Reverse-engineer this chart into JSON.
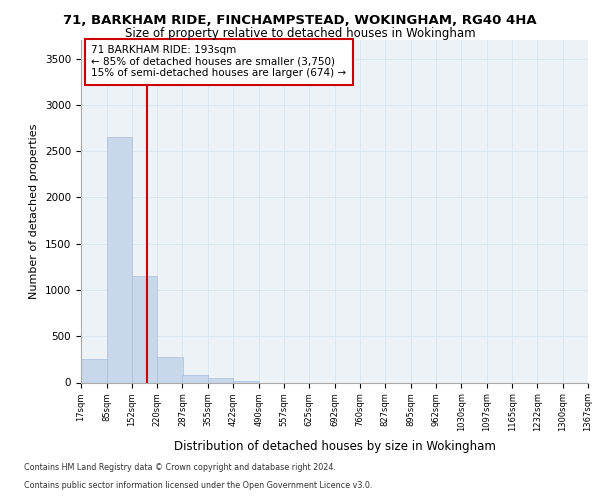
{
  "title1": "71, BARKHAM RIDE, FINCHAMPSTEAD, WOKINGHAM, RG40 4HA",
  "title2": "Size of property relative to detached houses in Wokingham",
  "xlabel": "Distribution of detached houses by size in Wokingham",
  "ylabel": "Number of detached properties",
  "footnote1": "Contains HM Land Registry data © Crown copyright and database right 2024.",
  "footnote2": "Contains public sector information licensed under the Open Government Licence v3.0.",
  "annotation_line1": "71 BARKHAM RIDE: 193sqm",
  "annotation_line2": "← 85% of detached houses are smaller (3,750)",
  "annotation_line3": "15% of semi-detached houses are larger (674) →",
  "property_size": 193,
  "bar_color": "#c8d8ea",
  "bar_edge_color": "#a8c0d8",
  "redline_color": "#cc0000",
  "grid_color": "#dce8f0",
  "background_color": "#edf2f7",
  "x_labels": [
    "17sqm",
    "85sqm",
    "152sqm",
    "220sqm",
    "287sqm",
    "355sqm",
    "422sqm",
    "490sqm",
    "557sqm",
    "625sqm",
    "692sqm",
    "760sqm",
    "827sqm",
    "895sqm",
    "962sqm",
    "1030sqm",
    "1097sqm",
    "1165sqm",
    "1232sqm",
    "1300sqm",
    "1367sqm"
  ],
  "bin_edges": [
    17,
    85,
    152,
    220,
    287,
    355,
    422,
    490,
    557,
    625,
    692,
    760,
    827,
    895,
    962,
    1030,
    1097,
    1165,
    1232,
    1300,
    1367
  ],
  "bar_heights": [
    250,
    2650,
    1150,
    280,
    80,
    50,
    20,
    0,
    0,
    0,
    0,
    0,
    0,
    0,
    0,
    0,
    0,
    0,
    0,
    0
  ],
  "ylim": [
    0,
    3700
  ],
  "yticks": [
    0,
    500,
    1000,
    1500,
    2000,
    2500,
    3000,
    3500
  ]
}
